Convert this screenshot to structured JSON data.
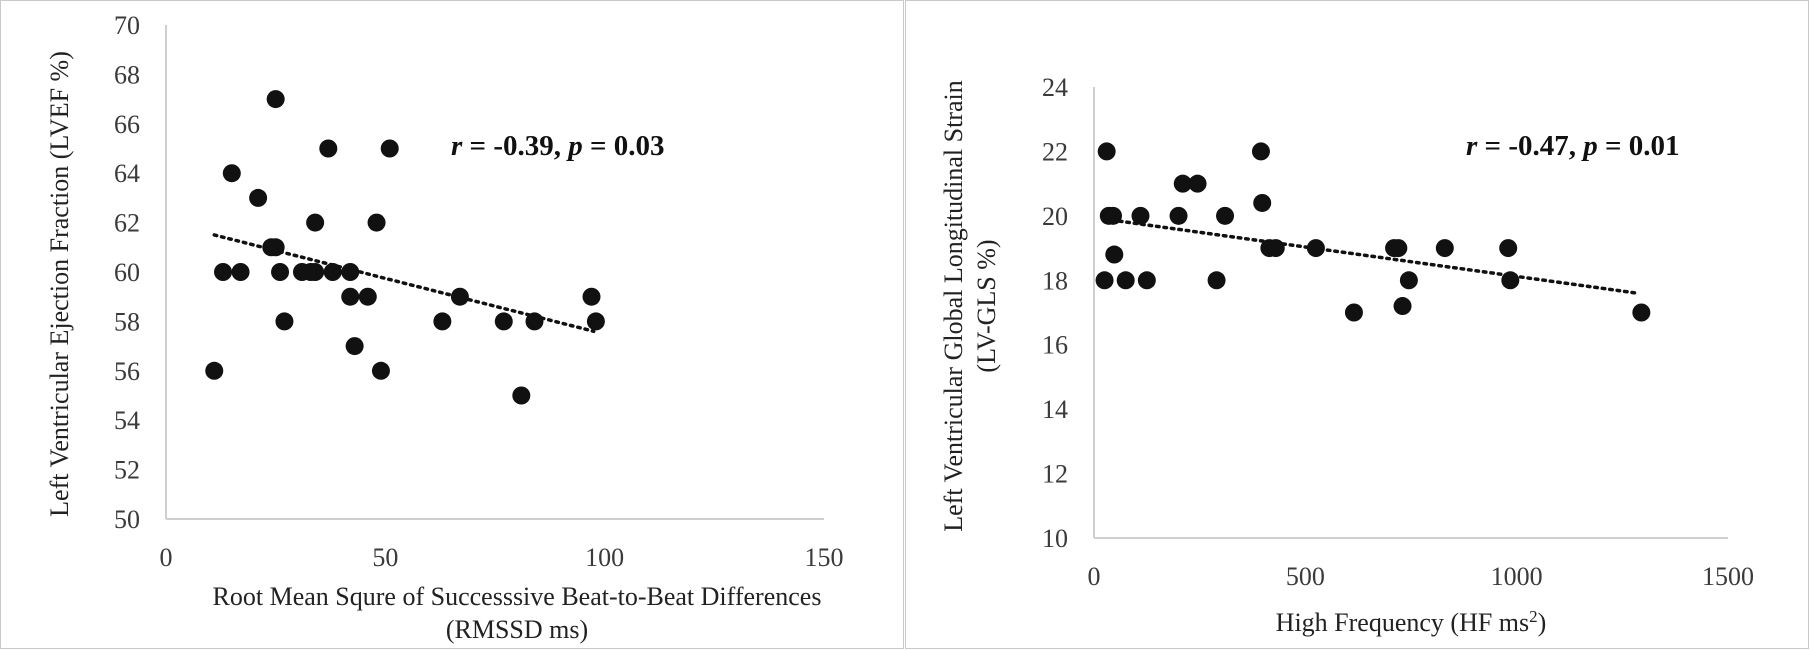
{
  "chart_data": [
    {
      "type": "scatter",
      "xlabel_lines": [
        "Root Mean Squre of Successsive Beat-to-Beat Differences",
        "(RMSSD ms)"
      ],
      "ylabel": "Left Ventricular Ejection Fraction (LVEF %)",
      "xlim": [
        0,
        150
      ],
      "ylim": [
        50,
        70
      ],
      "xticks": [
        "0",
        "50",
        "100",
        "150"
      ],
      "yticks": [
        "50",
        "52",
        "54",
        "56",
        "58",
        "60",
        "62",
        "64",
        "66",
        "68",
        "70"
      ],
      "annotation": {
        "r_label": "r",
        "r_text": " = -0.39, ",
        "p_label": "p",
        "p_text": " = 0.03"
      },
      "trendline": {
        "style": "dotted",
        "from": [
          11,
          61.5
        ],
        "to": [
          97.5,
          57.6
        ]
      },
      "grid": false,
      "points": [
        [
          11,
          56
        ],
        [
          13,
          60
        ],
        [
          15,
          64
        ],
        [
          17,
          60
        ],
        [
          21,
          63
        ],
        [
          24,
          61
        ],
        [
          25,
          67
        ],
        [
          25,
          61
        ],
        [
          26,
          60
        ],
        [
          27,
          58
        ],
        [
          31,
          60
        ],
        [
          33,
          60
        ],
        [
          34,
          62
        ],
        [
          34,
          60
        ],
        [
          37,
          65
        ],
        [
          38,
          60
        ],
        [
          42,
          59
        ],
        [
          42,
          60
        ],
        [
          43,
          57
        ],
        [
          46,
          59
        ],
        [
          48,
          62
        ],
        [
          49,
          56
        ],
        [
          51,
          65
        ],
        [
          63,
          58
        ],
        [
          67,
          59
        ],
        [
          77,
          58
        ],
        [
          81,
          55
        ],
        [
          84,
          58
        ],
        [
          97,
          59
        ],
        [
          98,
          58
        ]
      ]
    },
    {
      "type": "scatter",
      "xlabel_main": "High Frequency (HF ms",
      "xlabel_sup": "2",
      "xlabel_end": ")",
      "ylabel_lines": [
        "Left Ventricular Global Longitudinal Strain",
        "(LV-GLS %)"
      ],
      "xlim": [
        0,
        1500
      ],
      "ylim": [
        10,
        24
      ],
      "xticks": [
        "0",
        "500",
        "1000",
        "1500"
      ],
      "yticks": [
        "10",
        "12",
        "14",
        "16",
        "18",
        "20",
        "22",
        "24"
      ],
      "annotation": {
        "r_label": "r",
        "r_text": " = -0.47, ",
        "p_label": "p",
        "p_text": " = 0.01"
      },
      "trendline": {
        "style": "dotted",
        "from": [
          25,
          19.9
        ],
        "to": [
          1285,
          17.6
        ]
      },
      "grid": false,
      "points": [
        [
          25,
          18
        ],
        [
          30,
          22
        ],
        [
          35,
          20
        ],
        [
          45,
          20
        ],
        [
          48,
          18.8
        ],
        [
          75,
          18
        ],
        [
          110,
          20
        ],
        [
          125,
          18
        ],
        [
          200,
          20
        ],
        [
          210,
          21
        ],
        [
          245,
          21
        ],
        [
          290,
          18
        ],
        [
          310,
          20
        ],
        [
          395,
          22
        ],
        [
          398,
          20.4
        ],
        [
          415,
          19
        ],
        [
          430,
          19
        ],
        [
          525,
          19
        ],
        [
          615,
          17
        ],
        [
          710,
          19
        ],
        [
          720,
          19
        ],
        [
          730,
          17.2
        ],
        [
          745,
          18
        ],
        [
          830,
          19
        ],
        [
          980,
          19
        ],
        [
          985,
          18
        ],
        [
          1295,
          17
        ]
      ]
    }
  ],
  "colors": {
    "marker": "#111111",
    "axis": "#cfcfcf",
    "text": "#333333"
  }
}
